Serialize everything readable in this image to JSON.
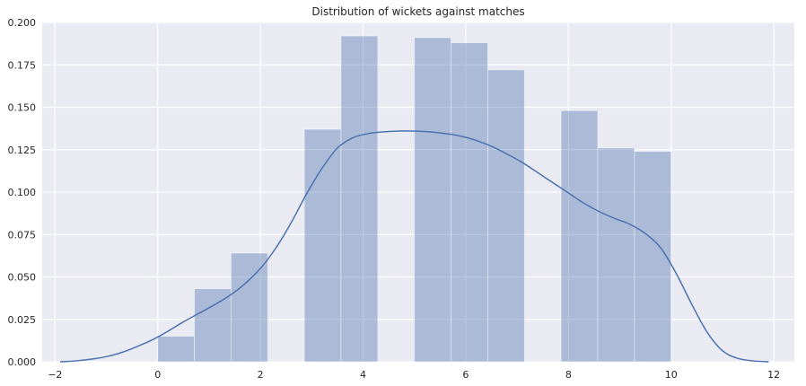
{
  "chart_data": {
    "type": "bar",
    "title": "Distribution of wickets against matches",
    "xlabel": "",
    "ylabel": "",
    "xlim": [
      -2.25,
      12.4
    ],
    "ylim": [
      0,
      0.2
    ],
    "xticks": [
      -2,
      0,
      2,
      4,
      6,
      8,
      10,
      12
    ],
    "xtick_labels": [
      "−2",
      "0",
      "2",
      "4",
      "6",
      "8",
      "10",
      "12"
    ],
    "yticks": [
      0,
      0.025,
      0.05,
      0.075,
      0.1,
      0.125,
      0.15,
      0.175,
      0.2
    ],
    "ytick_labels": [
      "0.000",
      "0.025",
      "0.050",
      "0.075",
      "0.100",
      "0.125",
      "0.150",
      "0.175",
      "0.200"
    ],
    "grid": true,
    "background": "#eaeaf2",
    "bar_color": "#4c72b0",
    "bar_opacity": 0.4,
    "line_color": "#4c72b0",
    "histogram": [
      {
        "x0": 0.0,
        "x1": 0.714,
        "density": 0.015
      },
      {
        "x0": 0.714,
        "x1": 1.429,
        "density": 0.043
      },
      {
        "x0": 1.429,
        "x1": 2.143,
        "density": 0.064
      },
      {
        "x0": 2.143,
        "x1": 2.857,
        "density": 0.0
      },
      {
        "x0": 2.857,
        "x1": 3.571,
        "density": 0.137
      },
      {
        "x0": 3.571,
        "x1": 4.286,
        "density": 0.192
      },
      {
        "x0": 4.286,
        "x1": 5.0,
        "density": 0.0
      },
      {
        "x0": 5.0,
        "x1": 5.714,
        "density": 0.191
      },
      {
        "x0": 5.714,
        "x1": 6.429,
        "density": 0.188
      },
      {
        "x0": 6.429,
        "x1": 7.143,
        "density": 0.172
      },
      {
        "x0": 7.143,
        "x1": 7.857,
        "density": 0.0
      },
      {
        "x0": 7.857,
        "x1": 8.571,
        "density": 0.148
      },
      {
        "x0": 8.571,
        "x1": 9.286,
        "density": 0.126
      },
      {
        "x0": 9.286,
        "x1": 10.0,
        "density": 0.124
      }
    ],
    "kde": {
      "x": [
        -1.9,
        -1.6,
        -1.3,
        -1.0,
        -0.7,
        -0.4,
        -0.1,
        0.2,
        0.5,
        0.8,
        1.1,
        1.4,
        1.7,
        2.0,
        2.3,
        2.6,
        2.9,
        3.2,
        3.5,
        3.8,
        4.1,
        4.4,
        4.7,
        5.0,
        5.3,
        5.6,
        5.9,
        6.2,
        6.5,
        6.8,
        7.1,
        7.4,
        7.7,
        8.0,
        8.3,
        8.6,
        8.9,
        9.2,
        9.5,
        9.8,
        10.1,
        10.4,
        10.7,
        11.0,
        11.3,
        11.6,
        11.9
      ],
      "y": [
        0.0,
        0.0005,
        0.0015,
        0.003,
        0.0055,
        0.009,
        0.013,
        0.018,
        0.0235,
        0.0285,
        0.0335,
        0.039,
        0.046,
        0.055,
        0.067,
        0.082,
        0.099,
        0.114,
        0.126,
        0.132,
        0.1345,
        0.1355,
        0.136,
        0.136,
        0.1355,
        0.1345,
        0.133,
        0.1305,
        0.127,
        0.1225,
        0.1175,
        0.1115,
        0.1055,
        0.0995,
        0.0935,
        0.0885,
        0.0845,
        0.081,
        0.0755,
        0.067,
        0.052,
        0.034,
        0.0175,
        0.0065,
        0.002,
        0.0005,
        0.0
      ]
    }
  }
}
